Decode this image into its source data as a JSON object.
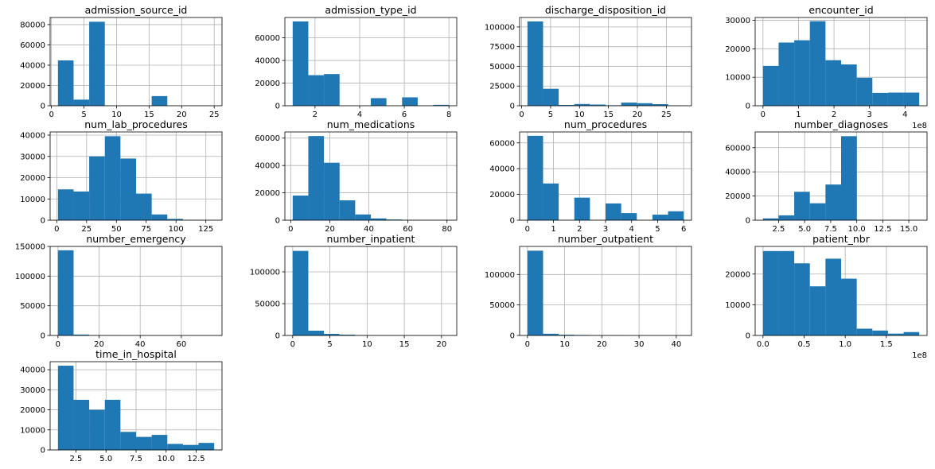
{
  "chart_data": [
    {
      "type": "bar",
      "title": "admission_source_id",
      "bars": [
        {
          "x0": 1.0,
          "x1": 3.4,
          "y": 44700
        },
        {
          "x0": 3.4,
          "x1": 5.8,
          "y": 6000
        },
        {
          "x0": 5.8,
          "x1": 8.2,
          "y": 82800
        },
        {
          "x0": 15.4,
          "x1": 17.8,
          "y": 9500
        }
      ],
      "xlim": [
        -0.2,
        26.2
      ],
      "ylim": [
        0,
        87000
      ],
      "xticks": [
        0,
        5,
        10,
        15,
        20,
        25
      ],
      "xtick_labels": [
        "0",
        "5",
        "10",
        "15",
        "20",
        "25"
      ],
      "yticks": [
        0,
        20000,
        40000,
        60000,
        80000
      ],
      "ytick_labels": [
        "0",
        "20000",
        "40000",
        "60000",
        "80000"
      ]
    },
    {
      "type": "bar",
      "title": "admission_type_id",
      "bars": [
        {
          "x0": 1.0,
          "x1": 1.7,
          "y": 74500
        },
        {
          "x0": 1.7,
          "x1": 2.4,
          "y": 27000
        },
        {
          "x0": 2.4,
          "x1": 3.1,
          "y": 28000
        },
        {
          "x0": 4.5,
          "x1": 5.2,
          "y": 6700
        },
        {
          "x0": 5.9,
          "x1": 6.6,
          "y": 7400
        },
        {
          "x0": 7.3,
          "x1": 8.0,
          "y": 800
        }
      ],
      "xlim": [
        0.65,
        8.35
      ],
      "ylim": [
        0,
        78000
      ],
      "xticks": [
        2,
        4,
        6,
        8
      ],
      "xtick_labels": [
        "2",
        "4",
        "6",
        "8"
      ],
      "yticks": [
        0,
        20000,
        40000,
        60000
      ],
      "ytick_labels": [
        "0",
        "20000",
        "40000",
        "60000"
      ]
    },
    {
      "type": "bar",
      "title": "discharge_disposition_id",
      "bars": [
        {
          "x0": 1.0,
          "x1": 3.7,
          "y": 107000
        },
        {
          "x0": 3.7,
          "x1": 6.4,
          "y": 21500
        },
        {
          "x0": 6.4,
          "x1": 9.1,
          "y": 1000
        },
        {
          "x0": 9.1,
          "x1": 11.8,
          "y": 2200
        },
        {
          "x0": 11.8,
          "x1": 14.5,
          "y": 1500
        },
        {
          "x0": 14.5,
          "x1": 17.2,
          "y": 600
        },
        {
          "x0": 17.2,
          "x1": 19.9,
          "y": 4000
        },
        {
          "x0": 19.9,
          "x1": 22.6,
          "y": 3200
        },
        {
          "x0": 22.6,
          "x1": 25.3,
          "y": 2000
        },
        {
          "x0": 25.3,
          "x1": 28.0,
          "y": 200
        }
      ],
      "xlim": [
        -0.35,
        29.35
      ],
      "ylim": [
        0,
        112000
      ],
      "xticks": [
        0,
        5,
        10,
        15,
        20,
        25
      ],
      "xtick_labels": [
        "0",
        "5",
        "10",
        "15",
        "20",
        "25"
      ],
      "yticks": [
        0,
        25000,
        50000,
        75000,
        100000
      ],
      "ytick_labels": [
        "0",
        "25000",
        "50000",
        "75000",
        "100000"
      ]
    },
    {
      "type": "bar",
      "title": "encounter_id",
      "offset_label": "1e8",
      "bars": [
        {
          "x0": 0.0,
          "x1": 0.44,
          "y": 14000
        },
        {
          "x0": 0.44,
          "x1": 0.88,
          "y": 22200
        },
        {
          "x0": 0.88,
          "x1": 1.32,
          "y": 23000
        },
        {
          "x0": 1.32,
          "x1": 1.76,
          "y": 29700
        },
        {
          "x0": 1.76,
          "x1": 2.2,
          "y": 16000
        },
        {
          "x0": 2.2,
          "x1": 2.64,
          "y": 14500
        },
        {
          "x0": 2.64,
          "x1": 3.08,
          "y": 9800
        },
        {
          "x0": 3.08,
          "x1": 3.52,
          "y": 4500
        },
        {
          "x0": 3.52,
          "x1": 3.96,
          "y": 4600
        },
        {
          "x0": 3.96,
          "x1": 4.4,
          "y": 4600
        }
      ],
      "xlim": [
        -0.22,
        4.62
      ],
      "ylim": [
        0,
        31000
      ],
      "xticks": [
        0,
        1,
        2,
        3,
        4
      ],
      "xtick_labels": [
        "0",
        "1",
        "2",
        "3",
        "4"
      ],
      "yticks": [
        0,
        10000,
        20000,
        30000
      ],
      "ytick_labels": [
        "0",
        "10000",
        "20000",
        "30000"
      ]
    },
    {
      "type": "bar",
      "title": "num_lab_procedures",
      "bars": [
        {
          "x0": 1.0,
          "x1": 14.1,
          "y": 14500
        },
        {
          "x0": 14.1,
          "x1": 27.2,
          "y": 13500
        },
        {
          "x0": 27.2,
          "x1": 40.3,
          "y": 30000
        },
        {
          "x0": 40.3,
          "x1": 53.4,
          "y": 39500
        },
        {
          "x0": 53.4,
          "x1": 66.5,
          "y": 29000
        },
        {
          "x0": 66.5,
          "x1": 79.6,
          "y": 12500
        },
        {
          "x0": 79.6,
          "x1": 92.7,
          "y": 2700
        },
        {
          "x0": 92.7,
          "x1": 105.8,
          "y": 600
        },
        {
          "x0": 105.8,
          "x1": 118.9,
          "y": 150
        },
        {
          "x0": 118.9,
          "x1": 132.0,
          "y": 50
        }
      ],
      "xlim": [
        -5.55,
        138.55
      ],
      "ylim": [
        0,
        41500
      ],
      "xticks": [
        0,
        25,
        50,
        75,
        100,
        125
      ],
      "xtick_labels": [
        "0",
        "25",
        "50",
        "75",
        "100",
        "125"
      ],
      "yticks": [
        0,
        10000,
        20000,
        30000,
        40000
      ],
      "ytick_labels": [
        "0",
        "10000",
        "20000",
        "30000",
        "40000"
      ]
    },
    {
      "type": "bar",
      "title": "num_medications",
      "bars": [
        {
          "x0": 1.0,
          "x1": 9.0,
          "y": 18000
        },
        {
          "x0": 9.0,
          "x1": 17.0,
          "y": 61500
        },
        {
          "x0": 17.0,
          "x1": 25.0,
          "y": 42000
        },
        {
          "x0": 25.0,
          "x1": 33.0,
          "y": 14500
        },
        {
          "x0": 33.0,
          "x1": 41.0,
          "y": 4200
        },
        {
          "x0": 41.0,
          "x1": 49.0,
          "y": 1300
        },
        {
          "x0": 49.0,
          "x1": 57.0,
          "y": 500
        },
        {
          "x0": 57.0,
          "x1": 65.0,
          "y": 200
        },
        {
          "x0": 65.0,
          "x1": 73.0,
          "y": 60
        },
        {
          "x0": 73.0,
          "x1": 81.0,
          "y": 30
        }
      ],
      "xlim": [
        -3.0,
        85.0
      ],
      "ylim": [
        0,
        64500
      ],
      "xticks": [
        0,
        20,
        40,
        60,
        80
      ],
      "xtick_labels": [
        "0",
        "20",
        "40",
        "60",
        "80"
      ],
      "yticks": [
        0,
        20000,
        40000,
        60000
      ],
      "ytick_labels": [
        "0",
        "20000",
        "40000",
        "60000"
      ]
    },
    {
      "type": "bar",
      "title": "num_procedures",
      "bars": [
        {
          "x0": 0.0,
          "x1": 0.6,
          "y": 65500
        },
        {
          "x0": 0.6,
          "x1": 1.2,
          "y": 28500
        },
        {
          "x0": 1.8,
          "x1": 2.4,
          "y": 17500
        },
        {
          "x0": 3.0,
          "x1": 3.6,
          "y": 13000
        },
        {
          "x0": 3.6,
          "x1": 4.2,
          "y": 5500
        },
        {
          "x0": 4.8,
          "x1": 5.4,
          "y": 4300
        },
        {
          "x0": 5.4,
          "x1": 6.0,
          "y": 6900
        }
      ],
      "xlim": [
        -0.3,
        6.3
      ],
      "ylim": [
        0,
        68500
      ],
      "xticks": [
        0,
        1,
        2,
        3,
        4,
        5,
        6
      ],
      "xtick_labels": [
        "0",
        "1",
        "2",
        "3",
        "4",
        "5",
        "6"
      ],
      "yticks": [
        0,
        20000,
        40000,
        60000
      ],
      "ytick_labels": [
        "0",
        "20000",
        "40000",
        "60000"
      ]
    },
    {
      "type": "bar",
      "title": "number_diagnoses",
      "bars": [
        {
          "x0": 1.0,
          "x1": 2.5,
          "y": 1500
        },
        {
          "x0": 2.5,
          "x1": 4.0,
          "y": 4000
        },
        {
          "x0": 4.0,
          "x1": 5.5,
          "y": 23500
        },
        {
          "x0": 5.5,
          "x1": 7.0,
          "y": 14000
        },
        {
          "x0": 7.0,
          "x1": 8.5,
          "y": 29500
        },
        {
          "x0": 8.5,
          "x1": 10.0,
          "y": 69500
        },
        {
          "x0": 10.0,
          "x1": 11.5,
          "y": 200
        },
        {
          "x0": 11.5,
          "x1": 13.0,
          "y": 100
        },
        {
          "x0": 13.0,
          "x1": 14.5,
          "y": 50
        },
        {
          "x0": 14.5,
          "x1": 16.0,
          "y": 30
        }
      ],
      "xlim": [
        0.25,
        16.75
      ],
      "ylim": [
        0,
        73000
      ],
      "xticks": [
        2.5,
        5.0,
        7.5,
        10.0,
        12.5,
        15.0
      ],
      "xtick_labels": [
        "2.5",
        "5.0",
        "7.5",
        "10.0",
        "12.5",
        "15.0"
      ],
      "yticks": [
        0,
        20000,
        40000,
        60000
      ],
      "ytick_labels": [
        "0",
        "20000",
        "40000",
        "60000"
      ]
    },
    {
      "type": "bar",
      "title": "number_emergency",
      "bars": [
        {
          "x0": 0.0,
          "x1": 7.6,
          "y": 143500
        },
        {
          "x0": 7.6,
          "x1": 15.2,
          "y": 1500
        },
        {
          "x0": 15.2,
          "x1": 22.8,
          "y": 200
        },
        {
          "x0": 22.8,
          "x1": 30.4,
          "y": 60
        },
        {
          "x0": 30.4,
          "x1": 38.0,
          "y": 30
        }
      ],
      "xlim": [
        -3.8,
        79.8
      ],
      "ylim": [
        0,
        150000
      ],
      "xticks": [
        0,
        20,
        40,
        60
      ],
      "xtick_labels": [
        "0",
        "20",
        "40",
        "60"
      ],
      "yticks": [
        0,
        50000,
        100000,
        150000
      ],
      "ytick_labels": [
        "0",
        "50000",
        "100000",
        "150000"
      ]
    },
    {
      "type": "bar",
      "title": "number_inpatient",
      "bars": [
        {
          "x0": 0.0,
          "x1": 2.1,
          "y": 133000
        },
        {
          "x0": 2.1,
          "x1": 4.2,
          "y": 7500
        },
        {
          "x0": 4.2,
          "x1": 6.3,
          "y": 2500
        },
        {
          "x0": 6.3,
          "x1": 8.4,
          "y": 1200
        },
        {
          "x0": 8.4,
          "x1": 10.5,
          "y": 500
        },
        {
          "x0": 10.5,
          "x1": 12.6,
          "y": 200
        },
        {
          "x0": 12.6,
          "x1": 14.7,
          "y": 80
        },
        {
          "x0": 14.7,
          "x1": 16.8,
          "y": 40
        }
      ],
      "xlim": [
        -1.05,
        22.05
      ],
      "ylim": [
        0,
        140000
      ],
      "xticks": [
        0,
        5,
        10,
        15,
        20
      ],
      "xtick_labels": [
        "0",
        "5",
        "10",
        "15",
        "20"
      ],
      "yticks": [
        0,
        50000,
        100000
      ],
      "ytick_labels": [
        "0",
        "50000",
        "100000"
      ]
    },
    {
      "type": "bar",
      "title": "number_outpatient",
      "bars": [
        {
          "x0": 0.0,
          "x1": 4.2,
          "y": 139000
        },
        {
          "x0": 4.2,
          "x1": 8.4,
          "y": 2800
        },
        {
          "x0": 8.4,
          "x1": 12.6,
          "y": 1200
        },
        {
          "x0": 12.6,
          "x1": 16.8,
          "y": 800
        },
        {
          "x0": 16.8,
          "x1": 21.0,
          "y": 150
        },
        {
          "x0": 21.0,
          "x1": 25.2,
          "y": 60
        }
      ],
      "xlim": [
        -2.1,
        44.1
      ],
      "ylim": [
        0,
        146000
      ],
      "xticks": [
        0,
        10,
        20,
        30,
        40
      ],
      "xtick_labels": [
        "0",
        "10",
        "20",
        "30",
        "40"
      ],
      "yticks": [
        0,
        50000,
        100000
      ],
      "ytick_labels": [
        "0",
        "50000",
        "100000"
      ]
    },
    {
      "type": "bar",
      "title": "patient_nbr",
      "offset_label": "1e8",
      "bars": [
        {
          "x0": 0.0,
          "x1": 0.19,
          "y": 27500
        },
        {
          "x0": 0.19,
          "x1": 0.38,
          "y": 27500
        },
        {
          "x0": 0.38,
          "x1": 0.57,
          "y": 23500
        },
        {
          "x0": 0.57,
          "x1": 0.76,
          "y": 16000
        },
        {
          "x0": 0.76,
          "x1": 0.95,
          "y": 25000
        },
        {
          "x0": 0.95,
          "x1": 1.14,
          "y": 18500
        },
        {
          "x0": 1.14,
          "x1": 1.33,
          "y": 2200
        },
        {
          "x0": 1.33,
          "x1": 1.52,
          "y": 1600
        },
        {
          "x0": 1.52,
          "x1": 1.71,
          "y": 600
        },
        {
          "x0": 1.71,
          "x1": 1.9,
          "y": 1100
        }
      ],
      "xlim": [
        -0.095,
        1.995
      ],
      "ylim": [
        0,
        29000
      ],
      "xticks": [
        0.0,
        0.5,
        1.0,
        1.5
      ],
      "xtick_labels": [
        "0.0",
        "0.5",
        "1.0",
        "1.5"
      ],
      "yticks": [
        0,
        10000,
        20000
      ],
      "ytick_labels": [
        "0",
        "10000",
        "20000"
      ]
    },
    {
      "type": "bar",
      "title": "time_in_hospital",
      "bars": [
        {
          "x0": 1.0,
          "x1": 2.3,
          "y": 42000
        },
        {
          "x0": 2.3,
          "x1": 3.6,
          "y": 25000
        },
        {
          "x0": 3.6,
          "x1": 4.9,
          "y": 20000
        },
        {
          "x0": 4.9,
          "x1": 6.2,
          "y": 25000
        },
        {
          "x0": 6.2,
          "x1": 7.5,
          "y": 9000
        },
        {
          "x0": 7.5,
          "x1": 8.8,
          "y": 6500
        },
        {
          "x0": 8.8,
          "x1": 10.1,
          "y": 7500
        },
        {
          "x0": 10.1,
          "x1": 11.4,
          "y": 3000
        },
        {
          "x0": 11.4,
          "x1": 12.7,
          "y": 2500
        },
        {
          "x0": 12.7,
          "x1": 14.0,
          "y": 3500
        }
      ],
      "xlim": [
        0.35,
        14.65
      ],
      "ylim": [
        0,
        44000
      ],
      "xticks": [
        2.5,
        5.0,
        7.5,
        10.0,
        12.5
      ],
      "xtick_labels": [
        "2.5",
        "5.0",
        "7.5",
        "10.0",
        "12.5"
      ],
      "yticks": [
        0,
        10000,
        20000,
        30000,
        40000
      ],
      "ytick_labels": [
        "0",
        "10000",
        "20000",
        "30000",
        "40000"
      ]
    }
  ],
  "colors": {
    "bar": "#1f77b4",
    "grid": "#b0b0b0",
    "axis": "#000000",
    "background": "#ffffff"
  }
}
